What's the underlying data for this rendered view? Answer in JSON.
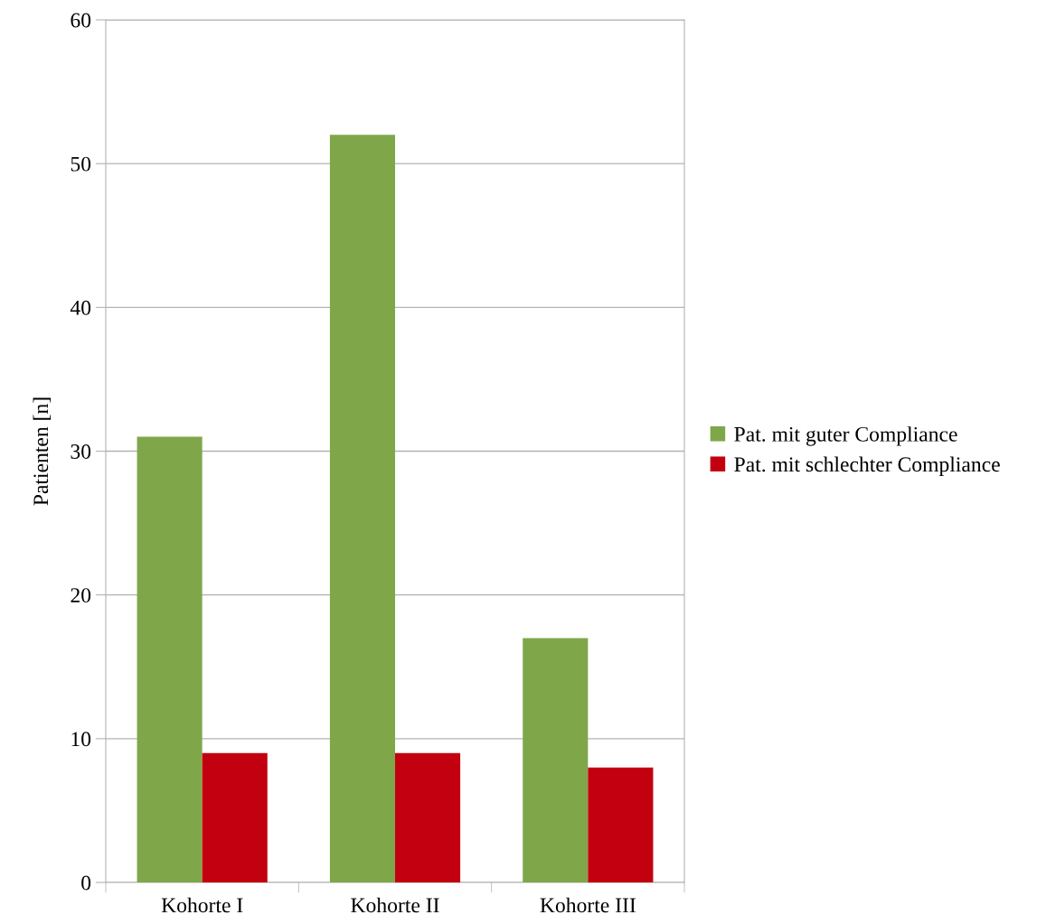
{
  "chart_data": {
    "type": "bar",
    "ylabel": "Patienten [n]",
    "categories": [
      "Kohorte I",
      "Kohorte II",
      "Kohorte III"
    ],
    "series": [
      {
        "name": "Pat. mit guter Compliance",
        "color": "#7fa74a",
        "values": [
          31,
          52,
          17
        ]
      },
      {
        "name": "Pat. mit schlechter Compliance",
        "color": "#c3000f",
        "values": [
          9,
          9,
          8
        ]
      }
    ],
    "ylim": [
      0,
      60
    ],
    "yticks": [
      0,
      10,
      20,
      30,
      40,
      50,
      60
    ],
    "grid": "y",
    "legend": "right"
  }
}
